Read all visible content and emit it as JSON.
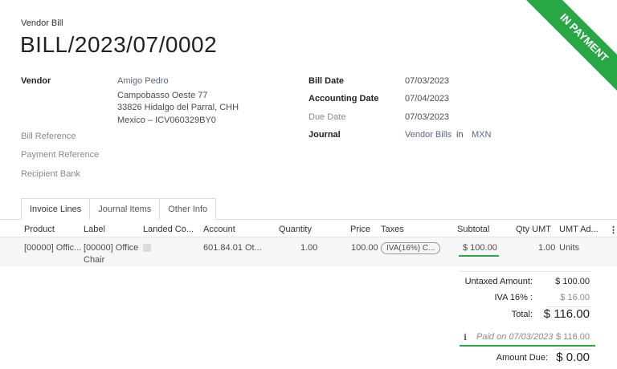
{
  "header": {
    "subtitle": "Vendor Bill",
    "title": "BILL/2023/07/0002",
    "ribbon": "IN PAYMENT",
    "ribbon_color": "#28a745"
  },
  "vendor": {
    "label": "Vendor",
    "name": "Amigo Pedro",
    "address": [
      "Campobasso Oeste 77",
      "33826 Hidalgo del Parral, CHH",
      "Mexico – ICV060329BY0"
    ]
  },
  "left_fields": [
    "Bill Reference",
    "Payment Reference",
    "Recipient Bank"
  ],
  "right_fields": {
    "bill_date": {
      "label": "Bill Date",
      "value": "07/03/2023"
    },
    "accounting_date": {
      "label": "Accounting Date",
      "value": "07/04/2023"
    },
    "due_date": {
      "label": "Due Date",
      "value": "07/03/2023"
    },
    "journal": {
      "label": "Journal",
      "value": "Vendor Bills",
      "in": "in",
      "currency": "MXN"
    }
  },
  "tabs": [
    "Invoice Lines",
    "Journal Items",
    "Other Info"
  ],
  "table": {
    "columns": [
      "Product",
      "Label",
      "Landed Co...",
      "Account",
      "Quantity",
      "Price",
      "Taxes",
      "Subtotal",
      "Qty UMT",
      "UMT Ad..."
    ],
    "rows": [
      {
        "product": "[00000] Offic...",
        "label_1": "[00000] Office",
        "label_2": "Chair",
        "account": "601.84.01 Ot...",
        "quantity": "1.00",
        "price": "100.00",
        "taxes": "IVA(16%) C...",
        "subtotal": "$ 100.00",
        "qty_umt": "1.00",
        "umt": "Units"
      }
    ]
  },
  "totals": {
    "untaxed_label": "Untaxed Amount:",
    "untaxed": "$ 100.00",
    "iva_label": "IVA 16% :",
    "iva": "$ 16.00",
    "total_label": "Total:",
    "total": "$ 116.00",
    "paid_label": "Paid on 07/03/2023",
    "paid": "$ 116.00",
    "due_label": "Amount Due:",
    "due": "$ 0.00"
  }
}
